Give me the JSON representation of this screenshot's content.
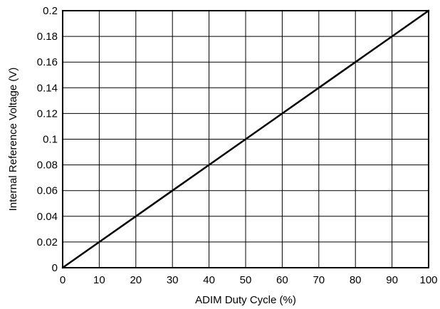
{
  "chart_data": {
    "type": "line",
    "title": "",
    "xlabel": "ADIM Duty Cycle (%)",
    "ylabel": "Internal Reference Voltage (V)",
    "xlim": [
      0,
      100
    ],
    "ylim": [
      0,
      0.2
    ],
    "x_ticks": [
      0,
      10,
      20,
      30,
      40,
      50,
      60,
      70,
      80,
      90,
      100
    ],
    "x_tick_labels": [
      "0",
      "10",
      "20",
      "30",
      "40",
      "50",
      "60",
      "70",
      "80",
      "90",
      "100"
    ],
    "y_ticks": [
      0,
      0.02,
      0.04,
      0.06,
      0.08,
      0.1,
      0.12,
      0.14,
      0.16,
      0.18,
      0.2
    ],
    "y_tick_labels": [
      "0",
      "0.02",
      "0.04",
      "0.06",
      "0.08",
      "0.1",
      "0.12",
      "0.14",
      "0.16",
      "0.18",
      "0.2"
    ],
    "grid": true,
    "legend": "none",
    "series": [
      {
        "color": "#000000",
        "x": [
          0,
          10,
          20,
          30,
          40,
          50,
          60,
          70,
          80,
          90,
          100
        ],
        "y": [
          0,
          0.02,
          0.04,
          0.06,
          0.08,
          0.1,
          0.12,
          0.14,
          0.16,
          0.18,
          0.2
        ]
      }
    ]
  }
}
